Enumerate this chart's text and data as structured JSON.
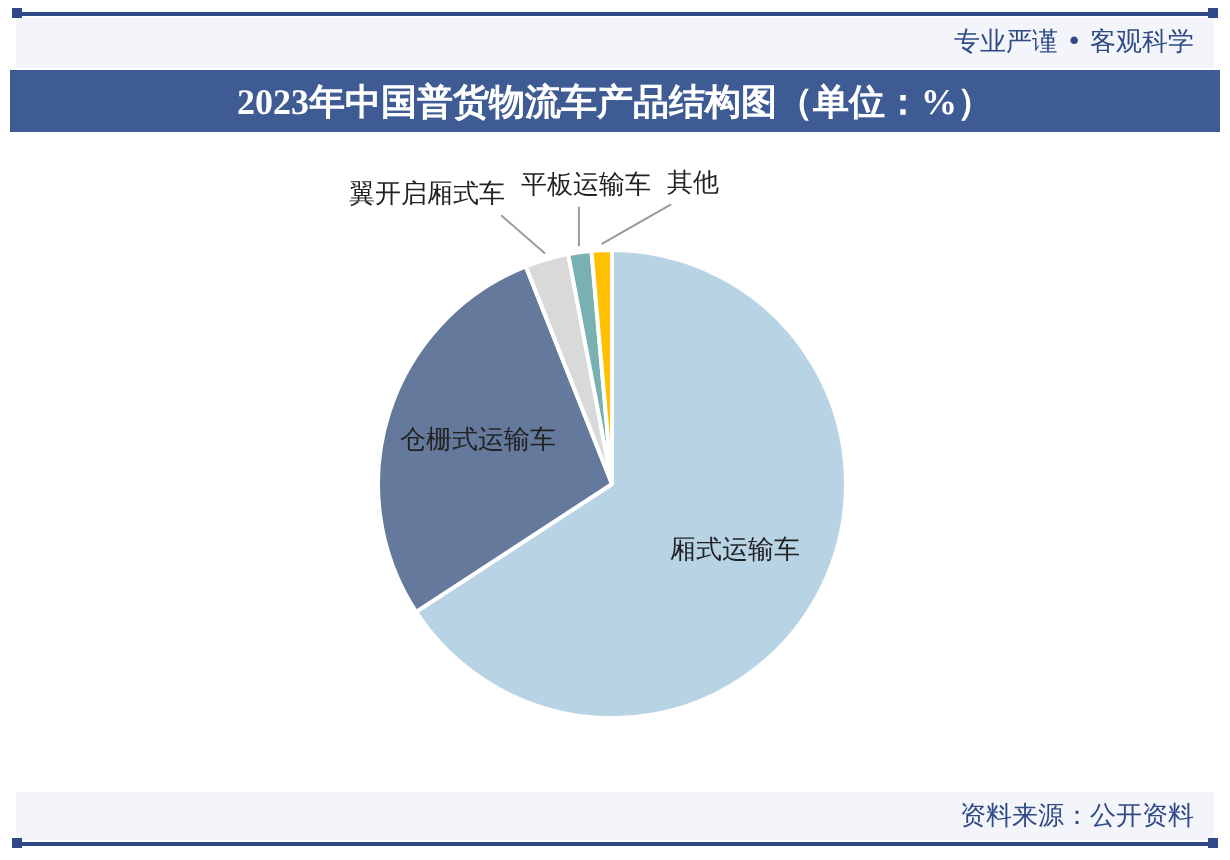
{
  "chart_data": {
    "type": "pie",
    "title": "2023年中国普货物流车产品结构图（单位：%）",
    "categories": [
      "厢式运输车",
      "仓栅式运输车",
      "翼开启厢式车",
      "平板运输车",
      "其他"
    ],
    "values": [
      65.8,
      28.2,
      3.0,
      1.6,
      1.4
    ],
    "colors": [
      "#b7d3e4",
      "#65799d",
      "#d9d9d9",
      "#79b0b2",
      "#ffc000"
    ],
    "annotations": [
      "专业严谨 • 客观科学",
      "资料来源：公开资料"
    ]
  }
}
